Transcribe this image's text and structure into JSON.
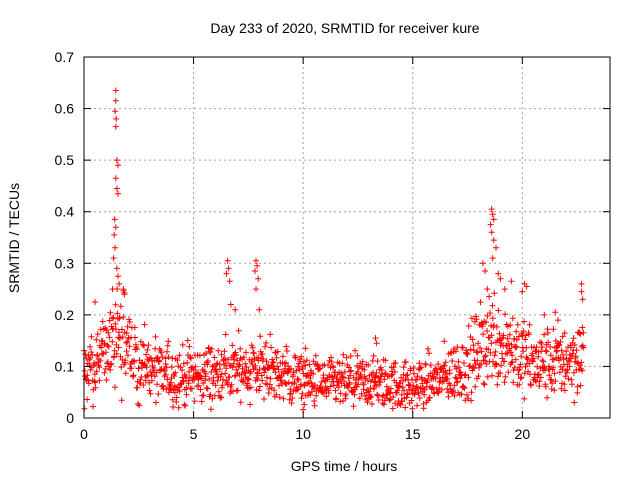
{
  "chart_data": {
    "type": "scatter",
    "title": "Day 233 of 2020, SRMTID for receiver kure",
    "xlabel": "GPS time / hours",
    "ylabel": "SRMTID / TECUs",
    "xlim": [
      0,
      24
    ],
    "ylim": [
      0,
      0.7
    ],
    "xticks": [
      "0",
      "5",
      "10",
      "15",
      "20"
    ],
    "yticks": [
      "0",
      "0.1",
      "0.2",
      "0.3",
      "0.4",
      "0.5",
      "0.6",
      "0.7"
    ],
    "xtick_values": [
      0,
      5,
      10,
      15,
      20
    ],
    "ytick_values": [
      0,
      0.1,
      0.2,
      0.3,
      0.4,
      0.5,
      0.6,
      0.7
    ],
    "grid": true,
    "marker": "plus",
    "marker_color": "#ff0000",
    "series": [
      {
        "name": "SRMTID",
        "baseline_profile": [
          [
            0.0,
            0.09
          ],
          [
            0.5,
            0.11
          ],
          [
            1.0,
            0.13
          ],
          [
            1.4,
            0.16
          ],
          [
            1.8,
            0.14
          ],
          [
            2.5,
            0.1
          ],
          [
            3.5,
            0.085
          ],
          [
            5.0,
            0.08
          ],
          [
            6.5,
            0.09
          ],
          [
            8.0,
            0.1
          ],
          [
            9.5,
            0.075
          ],
          [
            11.0,
            0.065
          ],
          [
            13.0,
            0.07
          ],
          [
            15.0,
            0.06
          ],
          [
            16.5,
            0.08
          ],
          [
            17.5,
            0.1
          ],
          [
            18.5,
            0.16
          ],
          [
            19.5,
            0.14
          ],
          [
            20.5,
            0.1
          ],
          [
            21.5,
            0.11
          ],
          [
            22.8,
            0.12
          ]
        ],
        "peaks": [
          {
            "x": 1.45,
            "y": 0.635
          },
          {
            "x": 1.45,
            "y": 0.615
          },
          {
            "x": 1.42,
            "y": 0.595
          },
          {
            "x": 1.47,
            "y": 0.58
          },
          {
            "x": 1.45,
            "y": 0.565
          },
          {
            "x": 1.5,
            "y": 0.5
          },
          {
            "x": 1.55,
            "y": 0.49
          },
          {
            "x": 1.45,
            "y": 0.465
          },
          {
            "x": 1.5,
            "y": 0.445
          },
          {
            "x": 1.55,
            "y": 0.435
          },
          {
            "x": 1.4,
            "y": 0.385
          },
          {
            "x": 1.45,
            "y": 0.37
          },
          {
            "x": 1.38,
            "y": 0.355
          },
          {
            "x": 1.42,
            "y": 0.33
          },
          {
            "x": 1.35,
            "y": 0.31
          },
          {
            "x": 1.5,
            "y": 0.29
          },
          {
            "x": 1.55,
            "y": 0.275
          },
          {
            "x": 1.6,
            "y": 0.26
          },
          {
            "x": 1.8,
            "y": 0.25
          },
          {
            "x": 1.85,
            "y": 0.24
          },
          {
            "x": 1.3,
            "y": 0.25
          },
          {
            "x": 6.55,
            "y": 0.305
          },
          {
            "x": 6.6,
            "y": 0.29
          },
          {
            "x": 6.5,
            "y": 0.28
          },
          {
            "x": 6.65,
            "y": 0.265
          },
          {
            "x": 6.7,
            "y": 0.22
          },
          {
            "x": 6.9,
            "y": 0.21
          },
          {
            "x": 7.85,
            "y": 0.305
          },
          {
            "x": 7.9,
            "y": 0.295
          },
          {
            "x": 7.8,
            "y": 0.285
          },
          {
            "x": 7.95,
            "y": 0.27
          },
          {
            "x": 7.85,
            "y": 0.25
          },
          {
            "x": 8.0,
            "y": 0.21
          },
          {
            "x": 18.6,
            "y": 0.405
          },
          {
            "x": 18.65,
            "y": 0.395
          },
          {
            "x": 18.7,
            "y": 0.385
          },
          {
            "x": 18.55,
            "y": 0.375
          },
          {
            "x": 18.6,
            "y": 0.36
          },
          {
            "x": 18.7,
            "y": 0.345
          },
          {
            "x": 18.8,
            "y": 0.33
          },
          {
            "x": 18.65,
            "y": 0.31
          },
          {
            "x": 18.2,
            "y": 0.3
          },
          {
            "x": 18.3,
            "y": 0.285
          },
          {
            "x": 18.9,
            "y": 0.28
          },
          {
            "x": 19.0,
            "y": 0.27
          },
          {
            "x": 19.5,
            "y": 0.265
          },
          {
            "x": 20.1,
            "y": 0.26
          },
          {
            "x": 20.2,
            "y": 0.255
          },
          {
            "x": 20.0,
            "y": 0.245
          },
          {
            "x": 19.2,
            "y": 0.25
          },
          {
            "x": 18.4,
            "y": 0.25
          },
          {
            "x": 22.7,
            "y": 0.26
          },
          {
            "x": 22.7,
            "y": 0.245
          },
          {
            "x": 22.75,
            "y": 0.23
          },
          {
            "x": 13.3,
            "y": 0.155
          },
          {
            "x": 13.35,
            "y": 0.145
          },
          {
            "x": 10.1,
            "y": 0.135
          },
          {
            "x": 21.0,
            "y": 0.2
          },
          {
            "x": 21.5,
            "y": 0.205
          },
          {
            "x": 0.5,
            "y": 0.225
          }
        ]
      }
    ]
  }
}
